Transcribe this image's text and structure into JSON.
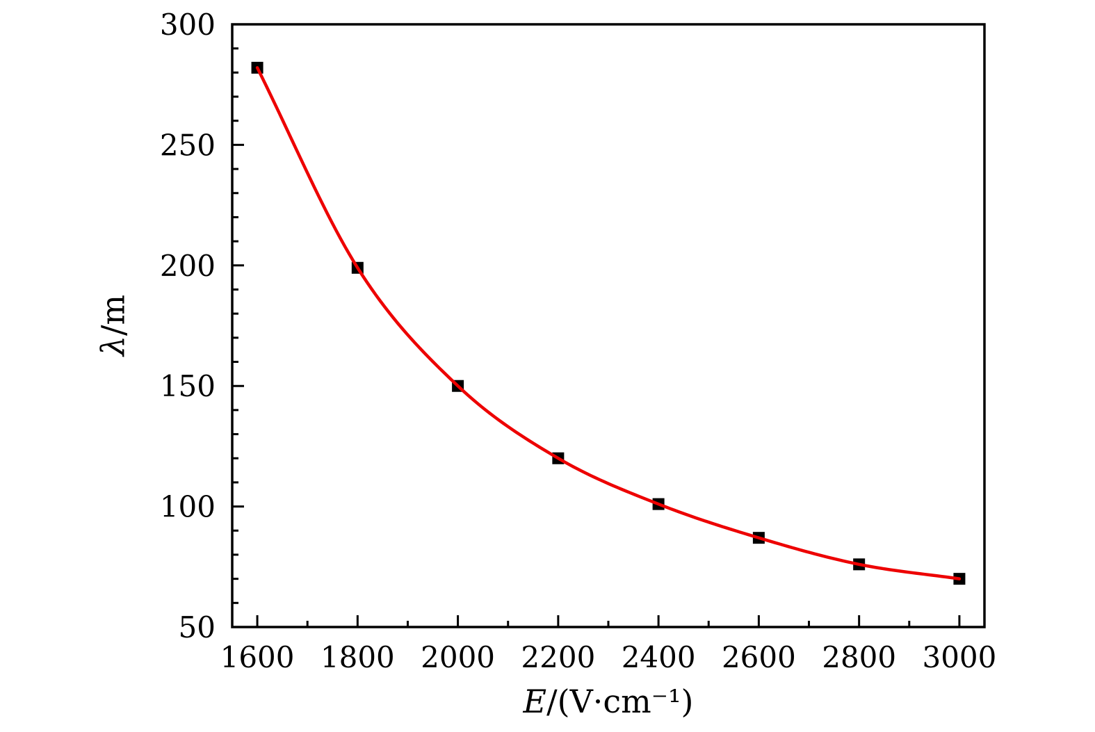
{
  "chart_data": {
    "type": "scatter",
    "title": "",
    "x": [
      1600,
      1800,
      2000,
      2200,
      2400,
      2600,
      2800,
      3000
    ],
    "y": [
      282,
      199,
      150,
      120,
      101,
      87,
      76,
      70
    ],
    "series": [
      {
        "name": "measured-points",
        "marker": "square",
        "color": "#000000"
      },
      {
        "name": "fit-curve",
        "style": "smooth-line",
        "color": "#ed0000"
      }
    ],
    "xlabel_var": "E",
    "xlabel_unit": "/(V·cm⁻¹)",
    "ylabel_var": "λ",
    "ylabel_unit": "/m",
    "xlim": [
      1550,
      3050
    ],
    "ylim": [
      50,
      300
    ],
    "x_major_ticks": [
      1600,
      1800,
      2000,
      2200,
      2400,
      2600,
      2800,
      3000
    ],
    "x_tick_labels": [
      "1600",
      "1800",
      "2000",
      "2200",
      "2400",
      "2600",
      "2800",
      "3000"
    ],
    "x_minor_step": 100,
    "y_major_ticks": [
      50,
      100,
      150,
      200,
      250,
      300
    ],
    "y_tick_labels": [
      "50",
      "100",
      "150",
      "200",
      "250",
      "300"
    ],
    "y_minor_step": 10,
    "grid": false,
    "legend": "none",
    "frame": "full-box",
    "tick_direction": "in",
    "colors": {
      "frame": "#000000",
      "tick": "#000000",
      "text": "#000000",
      "marker": "#000000",
      "fit_line": "#ed0000",
      "background": "#ffffff"
    }
  }
}
